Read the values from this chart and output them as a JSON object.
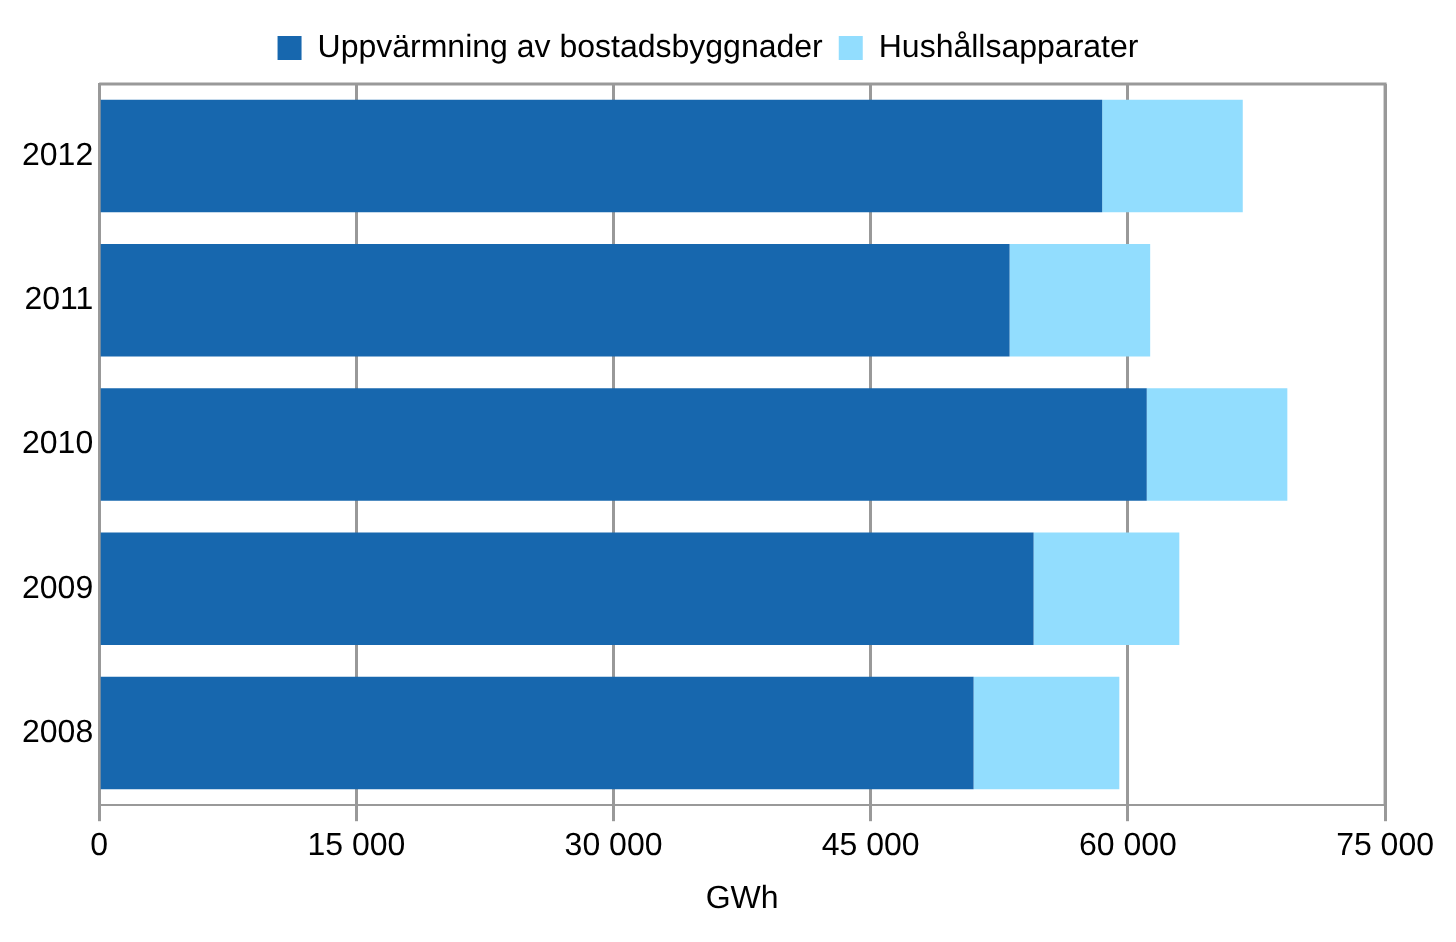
{
  "chart_data": {
    "type": "bar",
    "orientation": "horizontal",
    "stacked": true,
    "xlabel": "GWh",
    "categories": [
      "2012",
      "2011",
      "2010",
      "2009",
      "2008"
    ],
    "series": [
      {
        "name": "Uppvärmning av bostadsbyggnader",
        "color": "#1767ae",
        "values": [
          58500,
          53100,
          61100,
          54500,
          51000
        ]
      },
      {
        "name": "Hushållsapparater",
        "color": "#92ddfe",
        "values": [
          8200,
          8200,
          8200,
          8500,
          8500
        ]
      }
    ],
    "xlim": [
      0,
      75000
    ],
    "xticks": [
      {
        "value": 0,
        "label": "0"
      },
      {
        "value": 15000,
        "label": "15 000"
      },
      {
        "value": 30000,
        "label": "30 000"
      },
      {
        "value": 45000,
        "label": "45 000"
      },
      {
        "value": 60000,
        "label": "60 000"
      },
      {
        "value": 75000,
        "label": "75 000"
      }
    ],
    "grid": "x",
    "legend": "top"
  }
}
